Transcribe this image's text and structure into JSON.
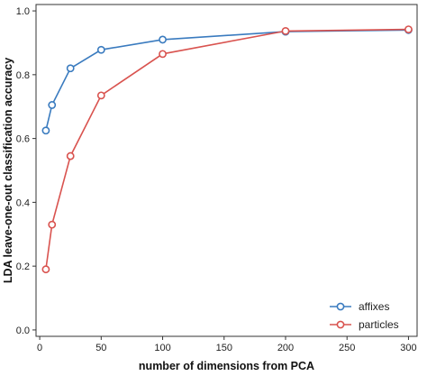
{
  "chart_data": {
    "type": "line",
    "xlabel": "number of dimensions from PCA",
    "ylabel": "LDA leave-one-out classification accuracy",
    "xlim": [
      -3,
      307
    ],
    "ylim": [
      -0.02,
      1.02
    ],
    "x_ticks": [
      0,
      50,
      100,
      150,
      200,
      250,
      300
    ],
    "y_ticks": [
      0.0,
      0.2,
      0.4,
      0.6,
      0.8,
      1.0
    ],
    "x_tick_labels": [
      "0",
      "50",
      "100",
      "150",
      "200",
      "250",
      "300"
    ],
    "y_tick_labels": [
      "0.0",
      "0.2",
      "0.4",
      "0.6",
      "0.8",
      "1.0"
    ],
    "grid": false,
    "legend_position": "bottom-right",
    "series": [
      {
        "name": "affixes",
        "color": "#3a7bbf",
        "x": [
          5,
          10,
          25,
          50,
          100,
          200,
          300
        ],
        "y": [
          0.625,
          0.705,
          0.82,
          0.878,
          0.91,
          0.935,
          0.94
        ]
      },
      {
        "name": "particles",
        "color": "#d9534f",
        "x": [
          5,
          10,
          25,
          50,
          100,
          200,
          300
        ],
        "y": [
          0.19,
          0.33,
          0.545,
          0.735,
          0.865,
          0.937,
          0.942
        ]
      }
    ]
  }
}
